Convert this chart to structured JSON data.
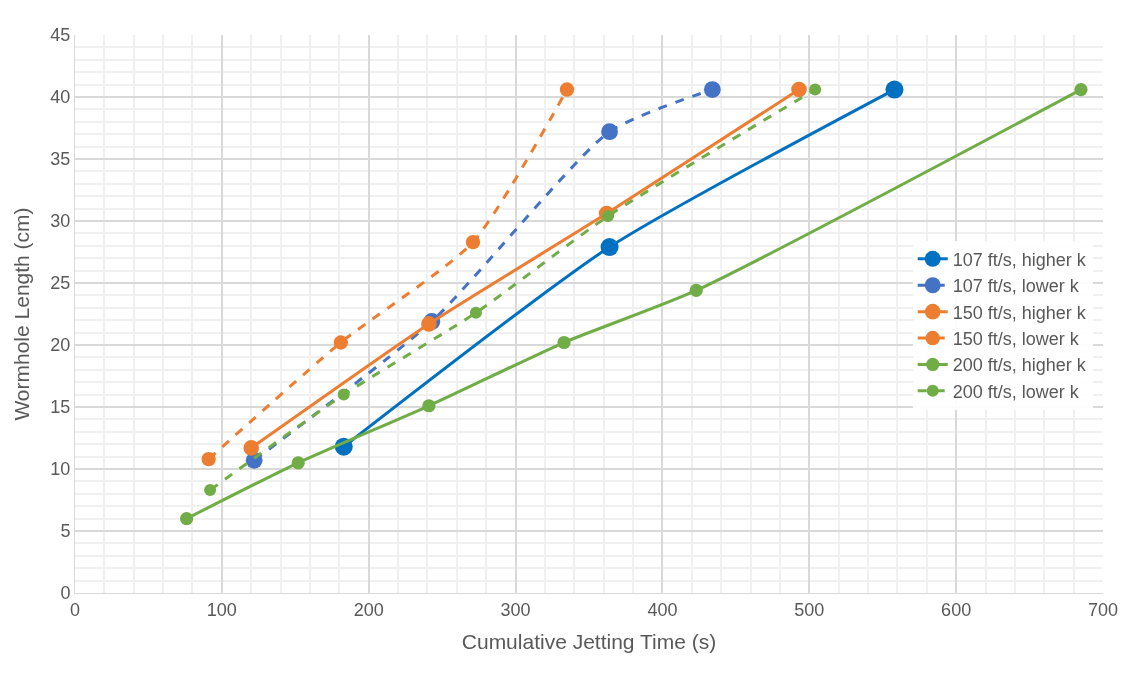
{
  "chart_data": {
    "type": "line",
    "xlabel": "Cumulative Jetting Time (s)",
    "ylabel": "Wormhole Length (cm)",
    "xlim": [
      0,
      700
    ],
    "xticks": [
      0,
      100,
      200,
      300,
      400,
      500,
      600,
      700
    ],
    "ylim": [
      0,
      45
    ],
    "yticks": [
      0,
      5,
      10,
      15,
      20,
      25,
      30,
      35,
      40,
      45
    ],
    "grid": true,
    "legend": "right",
    "marker": "circle",
    "series": [
      {
        "name": "107 ft/s, higher k",
        "color": "#0070c0",
        "line_style": "solid",
        "x": [
          183,
          364,
          558
        ],
        "values": [
          11.8,
          27.9,
          40.6
        ]
      },
      {
        "name": "107 ft/s, lower k",
        "color": "#4472c4",
        "line_style": "dashed",
        "x": [
          122,
          243,
          364,
          434
        ],
        "values": [
          10.7,
          21.9,
          37.2,
          40.6
        ]
      },
      {
        "name": "150 ft/s, higher k",
        "color": "#ed7d31",
        "line_style": "solid",
        "x": [
          120,
          241,
          362,
          493
        ],
        "values": [
          11.7,
          21.7,
          30.6,
          40.6
        ]
      },
      {
        "name": "150 ft/s, lower k",
        "color": "#ed7d31",
        "line_style": "dashed",
        "x": [
          91,
          181,
          271,
          335
        ],
        "values": [
          10.8,
          20.2,
          28.3,
          40.6
        ]
      },
      {
        "name": "200 ft/s, higher k",
        "color": "#70ad47",
        "line_style": "solid",
        "x": [
          76,
          152,
          241,
          333,
          423,
          685
        ],
        "values": [
          6.0,
          10.5,
          15.1,
          20.2,
          24.4,
          40.6
        ]
      },
      {
        "name": "200 ft/s, lower k",
        "color": "#70ad47",
        "line_style": "dashed",
        "x": [
          92,
          183,
          273,
          363,
          504
        ],
        "values": [
          8.3,
          16.0,
          22.6,
          30.4,
          40.6
        ]
      }
    ]
  }
}
